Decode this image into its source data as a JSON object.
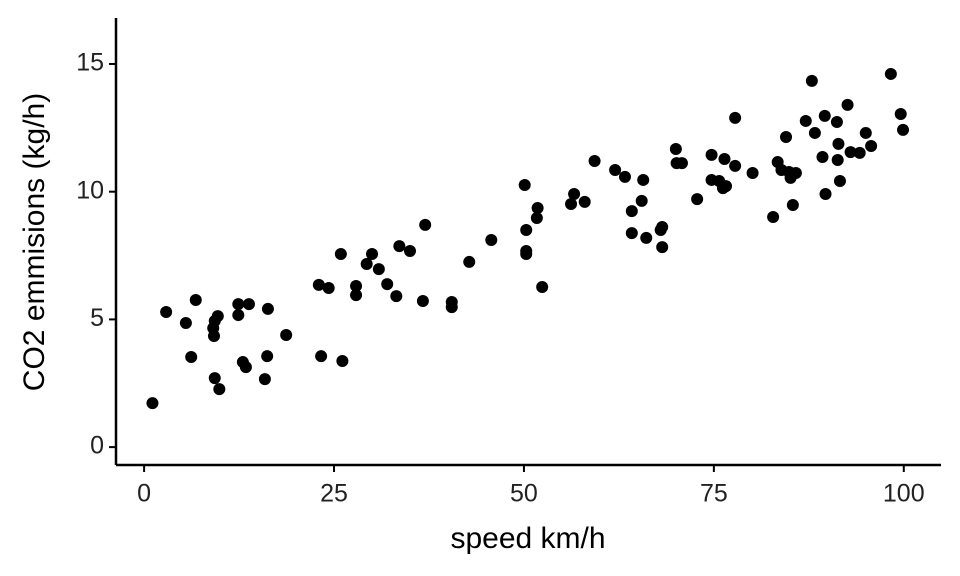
{
  "chart_data": {
    "type": "scatter",
    "xlabel": "speed km/h",
    "ylabel": "CO2 emmisions (kg/h)",
    "color": "#000000",
    "xlim": [
      -3.7,
      104.9
    ],
    "ylim": [
      -0.7,
      16.8
    ],
    "xticks": [
      0,
      25,
      50,
      75,
      100
    ],
    "yticks": [
      0,
      5,
      10,
      15
    ],
    "grid": false,
    "x": [
      1.1,
      2.9,
      5.5,
      6.8,
      6.2,
      9.1,
      9.2,
      9.3,
      9.7,
      9.3,
      9.9,
      12.4,
      12.4,
      13.8,
      13.0,
      13.4,
      16.3,
      16.2,
      15.9,
      18.7,
      23.0,
      24.3,
      23.3,
      25.9,
      26.1,
      27.9,
      27.9,
      29.3,
      30.0,
      30.9,
      32.0,
      33.2,
      33.6,
      35.0,
      37.0,
      36.7,
      40.5,
      40.5,
      42.8,
      45.7,
      50.1,
      50.3,
      50.3,
      50.3,
      51.8,
      51.7,
      52.4,
      56.2,
      56.6,
      58.0,
      59.3,
      62.0,
      63.3,
      64.2,
      65.5,
      65.7,
      64.2,
      66.1,
      68.0,
      68.2,
      68.2,
      70.0,
      70.1,
      70.8,
      72.8,
      74.7,
      74.7,
      75.7,
      76.2,
      76.6,
      76.4,
      77.8,
      77.8,
      80.1,
      82.8,
      83.4,
      83.9,
      84.5,
      84.9,
      85.1,
      85.8,
      85.4,
      87.1,
      87.9,
      88.3,
      89.3,
      89.6,
      89.7,
      91.2,
      91.4,
      91.3,
      91.6,
      92.6,
      93.0,
      94.2,
      95.0,
      95.7,
      98.3,
      99.6,
      99.9
    ],
    "values": [
      1.72,
      5.29,
      4.86,
      5.76,
      3.53,
      4.66,
      4.35,
      4.94,
      5.13,
      2.7,
      2.27,
      5.6,
      5.17,
      5.6,
      3.33,
      3.13,
      5.41,
      3.56,
      2.66,
      4.39,
      6.35,
      6.23,
      3.56,
      7.56,
      3.37,
      6.31,
      5.95,
      7.17,
      7.56,
      6.97,
      6.38,
      5.91,
      7.87,
      7.68,
      8.7,
      5.72,
      5.68,
      5.48,
      7.25,
      8.11,
      10.26,
      8.5,
      7.68,
      7.56,
      9.36,
      8.97,
      6.27,
      9.52,
      9.91,
      9.6,
      11.2,
      10.85,
      10.58,
      9.24,
      9.64,
      10.46,
      8.38,
      8.19,
      8.5,
      7.83,
      8.62,
      11.67,
      11.12,
      11.12,
      9.71,
      11.44,
      10.46,
      10.42,
      10.14,
      10.22,
      11.28,
      11.01,
      12.89,
      10.73,
      9.01,
      11.16,
      10.85,
      12.14,
      10.77,
      10.54,
      10.73,
      9.48,
      12.77,
      14.34,
      12.3,
      11.36,
      12.97,
      9.91,
      12.73,
      11.87,
      11.24,
      10.42,
      13.4,
      11.55,
      11.52,
      12.3,
      11.79,
      14.61,
      13.04,
      12.42
    ]
  }
}
